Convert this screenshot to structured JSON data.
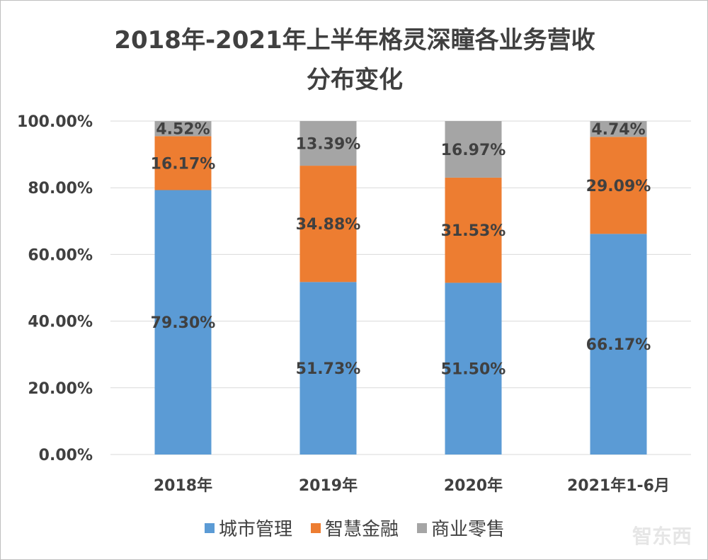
{
  "chart_data": {
    "type": "stacked-bar-100",
    "title": "2018年-2021年上半年格灵深瞳各业务营收分布变化",
    "title_lines": [
      "2018年-2021年上半年格灵深瞳各业务营收",
      "分布变化"
    ],
    "categories": [
      "2018年",
      "2019年",
      "2020年",
      "2021年1-6月"
    ],
    "series": [
      {
        "name": "城市管理",
        "values": [
          79.3,
          51.73,
          51.5,
          66.17
        ],
        "labels": [
          "79.30%",
          "51.73%",
          "51.50%",
          "66.17%"
        ],
        "color": "#5B9BD5"
      },
      {
        "name": "智慧金融",
        "values": [
          16.17,
          34.88,
          31.53,
          29.09
        ],
        "labels": [
          "16.17%",
          "34.88%",
          "31.53%",
          "29.09%"
        ],
        "color": "#ED7D31"
      },
      {
        "name": "商业零售",
        "values": [
          4.52,
          13.39,
          16.97,
          4.74
        ],
        "labels": [
          "4.52%",
          "13.39%",
          "16.97%",
          "4.74%"
        ],
        "color": "#A5A5A5"
      }
    ],
    "ylim": [
      0,
      100
    ],
    "yticks": [
      "0.00%",
      "20.00%",
      "40.00%",
      "60.00%",
      "80.00%",
      "100.00%"
    ],
    "grid": true,
    "legend": "bottom"
  },
  "watermark": "智东西"
}
